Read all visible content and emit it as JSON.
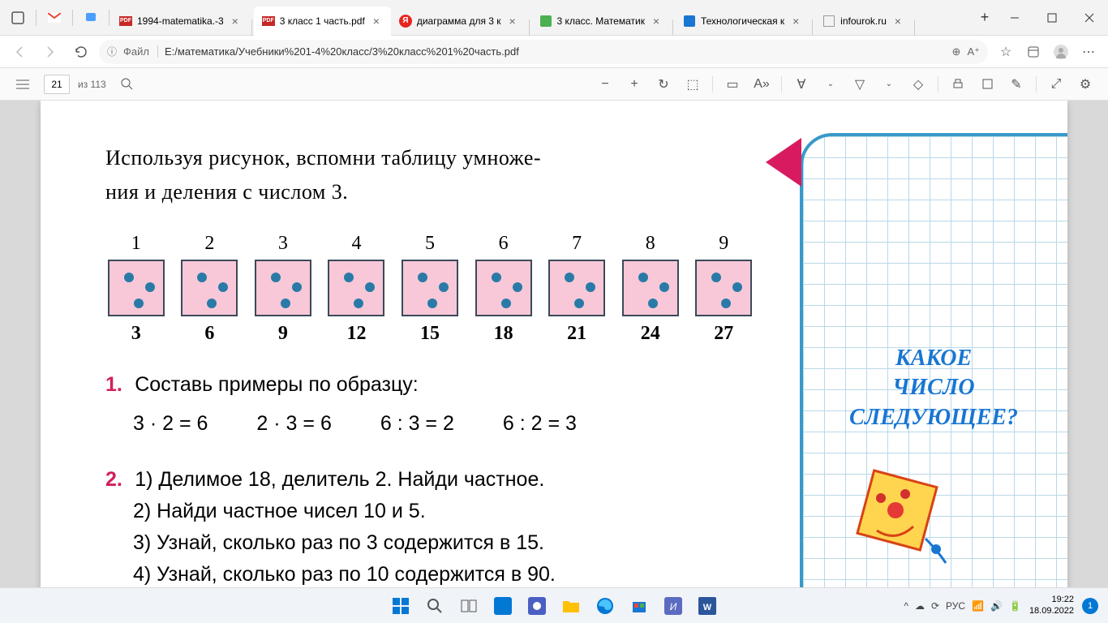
{
  "tabs": [
    {
      "label": "1994-matematika.-3",
      "fav": "pdf"
    },
    {
      "label": "3 класс 1 часть.pdf",
      "fav": "pdf",
      "active": true
    },
    {
      "label": "диаграмма для 3 к",
      "fav": "y"
    },
    {
      "label": "3 класс. Математик",
      "fav": "g"
    },
    {
      "label": "Технологическая к",
      "fav": "b"
    },
    {
      "label": "infourok.ru",
      "fav": "none"
    }
  ],
  "url": {
    "file_label": "Файл",
    "path": "E:/математика/Учебники%201-4%20класс/3%20класс%201%20часть.pdf"
  },
  "pdf": {
    "page": "21",
    "total": "из 113"
  },
  "content": {
    "intro": "Используя рисунок, вспомни таблицу умноже-\nния и деления с числом 3.",
    "dice_top": [
      "1",
      "2",
      "3",
      "4",
      "5",
      "6",
      "7",
      "8",
      "9"
    ],
    "dice_bottom": [
      "3",
      "6",
      "9",
      "12",
      "15",
      "18",
      "21",
      "24",
      "27"
    ],
    "task1_num": "1.",
    "task1": "Составь примеры по образцу:",
    "eq": [
      "3 · 2 = 6",
      "2 · 3 = 6",
      "6 : 3 = 2",
      "6 : 2 = 3"
    ],
    "task2_num": "2.",
    "task2_lines": [
      "1) Делимое 18, делитель 2. Найди частное.",
      "2) Найди частное чисел 10 и 5.",
      "3) Узнай, сколько раз по 3 содержится в 15.",
      "4) Узнай, сколько раз по 10 содержится в 90."
    ],
    "blue": "КАКОЕ\nЧИСЛО\nСЛЕДУЮЩЕЕ?"
  },
  "tray": {
    "lang": "РУС",
    "time": "19:22",
    "date": "18.09.2022"
  },
  "colors": {
    "dice_bg": "#f8c8d8",
    "dot": "#2a7aa8",
    "arrow": "#d81b60",
    "grid_border": "#3899c9"
  }
}
